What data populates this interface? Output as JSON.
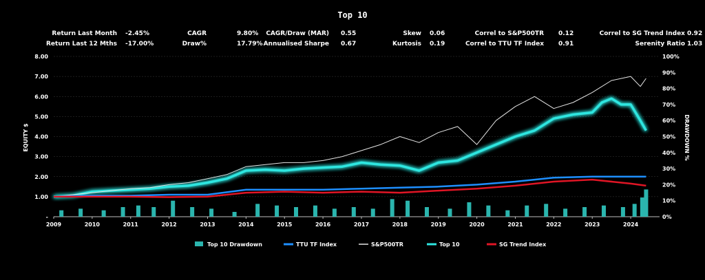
{
  "title": "Top 10",
  "stats": [
    {
      "label": "Return Last Month",
      "value": "-2.45%"
    },
    {
      "label": "Return Last 12 Mths",
      "value": "-17.00%"
    },
    {
      "label": "CAGR",
      "value": "9.80%"
    },
    {
      "label": "Draw%",
      "value": "17.79%"
    },
    {
      "label": "CAGR/Draw (MAR)",
      "value": "0.55"
    },
    {
      "label": "Annualised Sharpe",
      "value": "0.67"
    },
    {
      "label": "Skew",
      "value": "0.06"
    },
    {
      "label": "Kurtosis",
      "value": "0.19"
    },
    {
      "label": "Correl to S&P500TR",
      "value": "0.12"
    },
    {
      "label": "Correl to TTU TF Index",
      "value": "0.91"
    },
    {
      "label": "Correl to SG Trend Index",
      "value": "0.92"
    },
    {
      "label": "Serenity Ratio",
      "value": "1.03"
    }
  ],
  "chart_data": {
    "type": "line",
    "ylabel": "EQUITY $",
    "y2label": "DRAWDOWN %",
    "ylim": [
      0,
      8
    ],
    "y2lim": [
      0,
      100
    ],
    "xlim": [
      2009,
      2024.75
    ],
    "yticks": [
      "-",
      "1.00",
      "2.00",
      "3.00",
      "4.00",
      "5.00",
      "6.00",
      "7.00",
      "8.00"
    ],
    "y2ticks": [
      "0%",
      "10%",
      "20%",
      "30%",
      "40%",
      "50%",
      "60%",
      "70%",
      "80%",
      "90%",
      "100%"
    ],
    "xticks": [
      "2009",
      "2010",
      "2011",
      "2012",
      "2013",
      "2014",
      "2015",
      "2016",
      "2017",
      "2018",
      "2019",
      "2020",
      "2021",
      "2022",
      "2023",
      "2024"
    ],
    "legend_position": "bottom",
    "series": [
      {
        "name": "Top 10",
        "color": "#2ee6e0",
        "type": "line",
        "x": [
          2009,
          2009.5,
          2010,
          2010.5,
          2011,
          2011.5,
          2012,
          2012.5,
          2013,
          2013.5,
          2014,
          2014.5,
          2015,
          2015.5,
          2016,
          2016.5,
          2017,
          2017.5,
          2018,
          2018.5,
          2019,
          2019.5,
          2020,
          2020.5,
          2021,
          2021.5,
          2022,
          2022.5,
          2023,
          2023.25,
          2023.5,
          2023.75,
          2024,
          2024.25,
          2024.4
        ],
        "y": [
          1.0,
          1.05,
          1.25,
          1.3,
          1.35,
          1.4,
          1.5,
          1.55,
          1.7,
          1.9,
          2.3,
          2.35,
          2.3,
          2.4,
          2.45,
          2.5,
          2.7,
          2.6,
          2.55,
          2.3,
          2.7,
          2.8,
          3.2,
          3.6,
          4.0,
          4.3,
          4.9,
          5.1,
          5.2,
          5.7,
          5.9,
          5.6,
          5.6,
          4.8,
          4.3
        ]
      },
      {
        "name": "S&P500TR",
        "color": "#e6e6e6",
        "type": "line",
        "x": [
          2009,
          2009.5,
          2010,
          2010.5,
          2011,
          2011.5,
          2012,
          2012.5,
          2013,
          2013.5,
          2014,
          2014.5,
          2015,
          2015.5,
          2016,
          2016.5,
          2017,
          2017.5,
          2018,
          2018.5,
          2019,
          2019.5,
          2020,
          2020.5,
          2021,
          2021.5,
          2022,
          2022.5,
          2023,
          2023.5,
          2024,
          2024.25,
          2024.4
        ],
        "y": [
          1.0,
          1.1,
          1.2,
          1.3,
          1.4,
          1.45,
          1.6,
          1.7,
          1.9,
          2.1,
          2.5,
          2.6,
          2.7,
          2.7,
          2.8,
          3.0,
          3.3,
          3.6,
          4.0,
          3.7,
          4.2,
          4.5,
          3.6,
          4.8,
          5.5,
          6.0,
          5.4,
          5.7,
          6.2,
          6.8,
          7.0,
          6.5,
          6.9
        ]
      },
      {
        "name": "TTU TF Index",
        "color": "#1e8fff",
        "type": "line",
        "x": [
          2009,
          2010,
          2011,
          2012,
          2013,
          2014,
          2015,
          2016,
          2017,
          2018,
          2019,
          2020,
          2021,
          2022,
          2023,
          2024,
          2024.4
        ],
        "y": [
          1.0,
          1.05,
          1.05,
          1.1,
          1.1,
          1.35,
          1.35,
          1.35,
          1.4,
          1.45,
          1.5,
          1.6,
          1.75,
          1.95,
          2.0,
          2.0,
          2.0
        ]
      },
      {
        "name": "SG Trend Index",
        "color": "#e01525",
        "type": "line",
        "x": [
          2009,
          2010,
          2011,
          2012,
          2013,
          2014,
          2015,
          2016,
          2017,
          2018,
          2019,
          2020,
          2021,
          2022,
          2023,
          2024,
          2024.4
        ],
        "y": [
          1.0,
          1.0,
          1.0,
          0.98,
          1.0,
          1.2,
          1.25,
          1.2,
          1.25,
          1.2,
          1.3,
          1.4,
          1.55,
          1.75,
          1.85,
          1.65,
          1.55
        ]
      },
      {
        "name": "Top 10 Drawdown",
        "color": "#2bb5ae",
        "type": "bar",
        "x": [
          2009.2,
          2009.7,
          2010.3,
          2010.8,
          2011.2,
          2011.6,
          2012.1,
          2012.6,
          2013.1,
          2013.7,
          2014.3,
          2014.8,
          2015.3,
          2015.8,
          2016.3,
          2016.8,
          2017.3,
          2017.8,
          2018.2,
          2018.7,
          2019.3,
          2019.8,
          2020.3,
          2020.8,
          2021.3,
          2021.8,
          2022.3,
          2022.8,
          2023.3,
          2023.8,
          2024.1,
          2024.3,
          2024.4
        ],
        "y": [
          4,
          5,
          4,
          6,
          7,
          6,
          10,
          6,
          5,
          3,
          8,
          7,
          6,
          7,
          5,
          6,
          5,
          11,
          10,
          6,
          5,
          9,
          7,
          4,
          7,
          8,
          5,
          6,
          7,
          6,
          8,
          12,
          17
        ]
      }
    ]
  }
}
